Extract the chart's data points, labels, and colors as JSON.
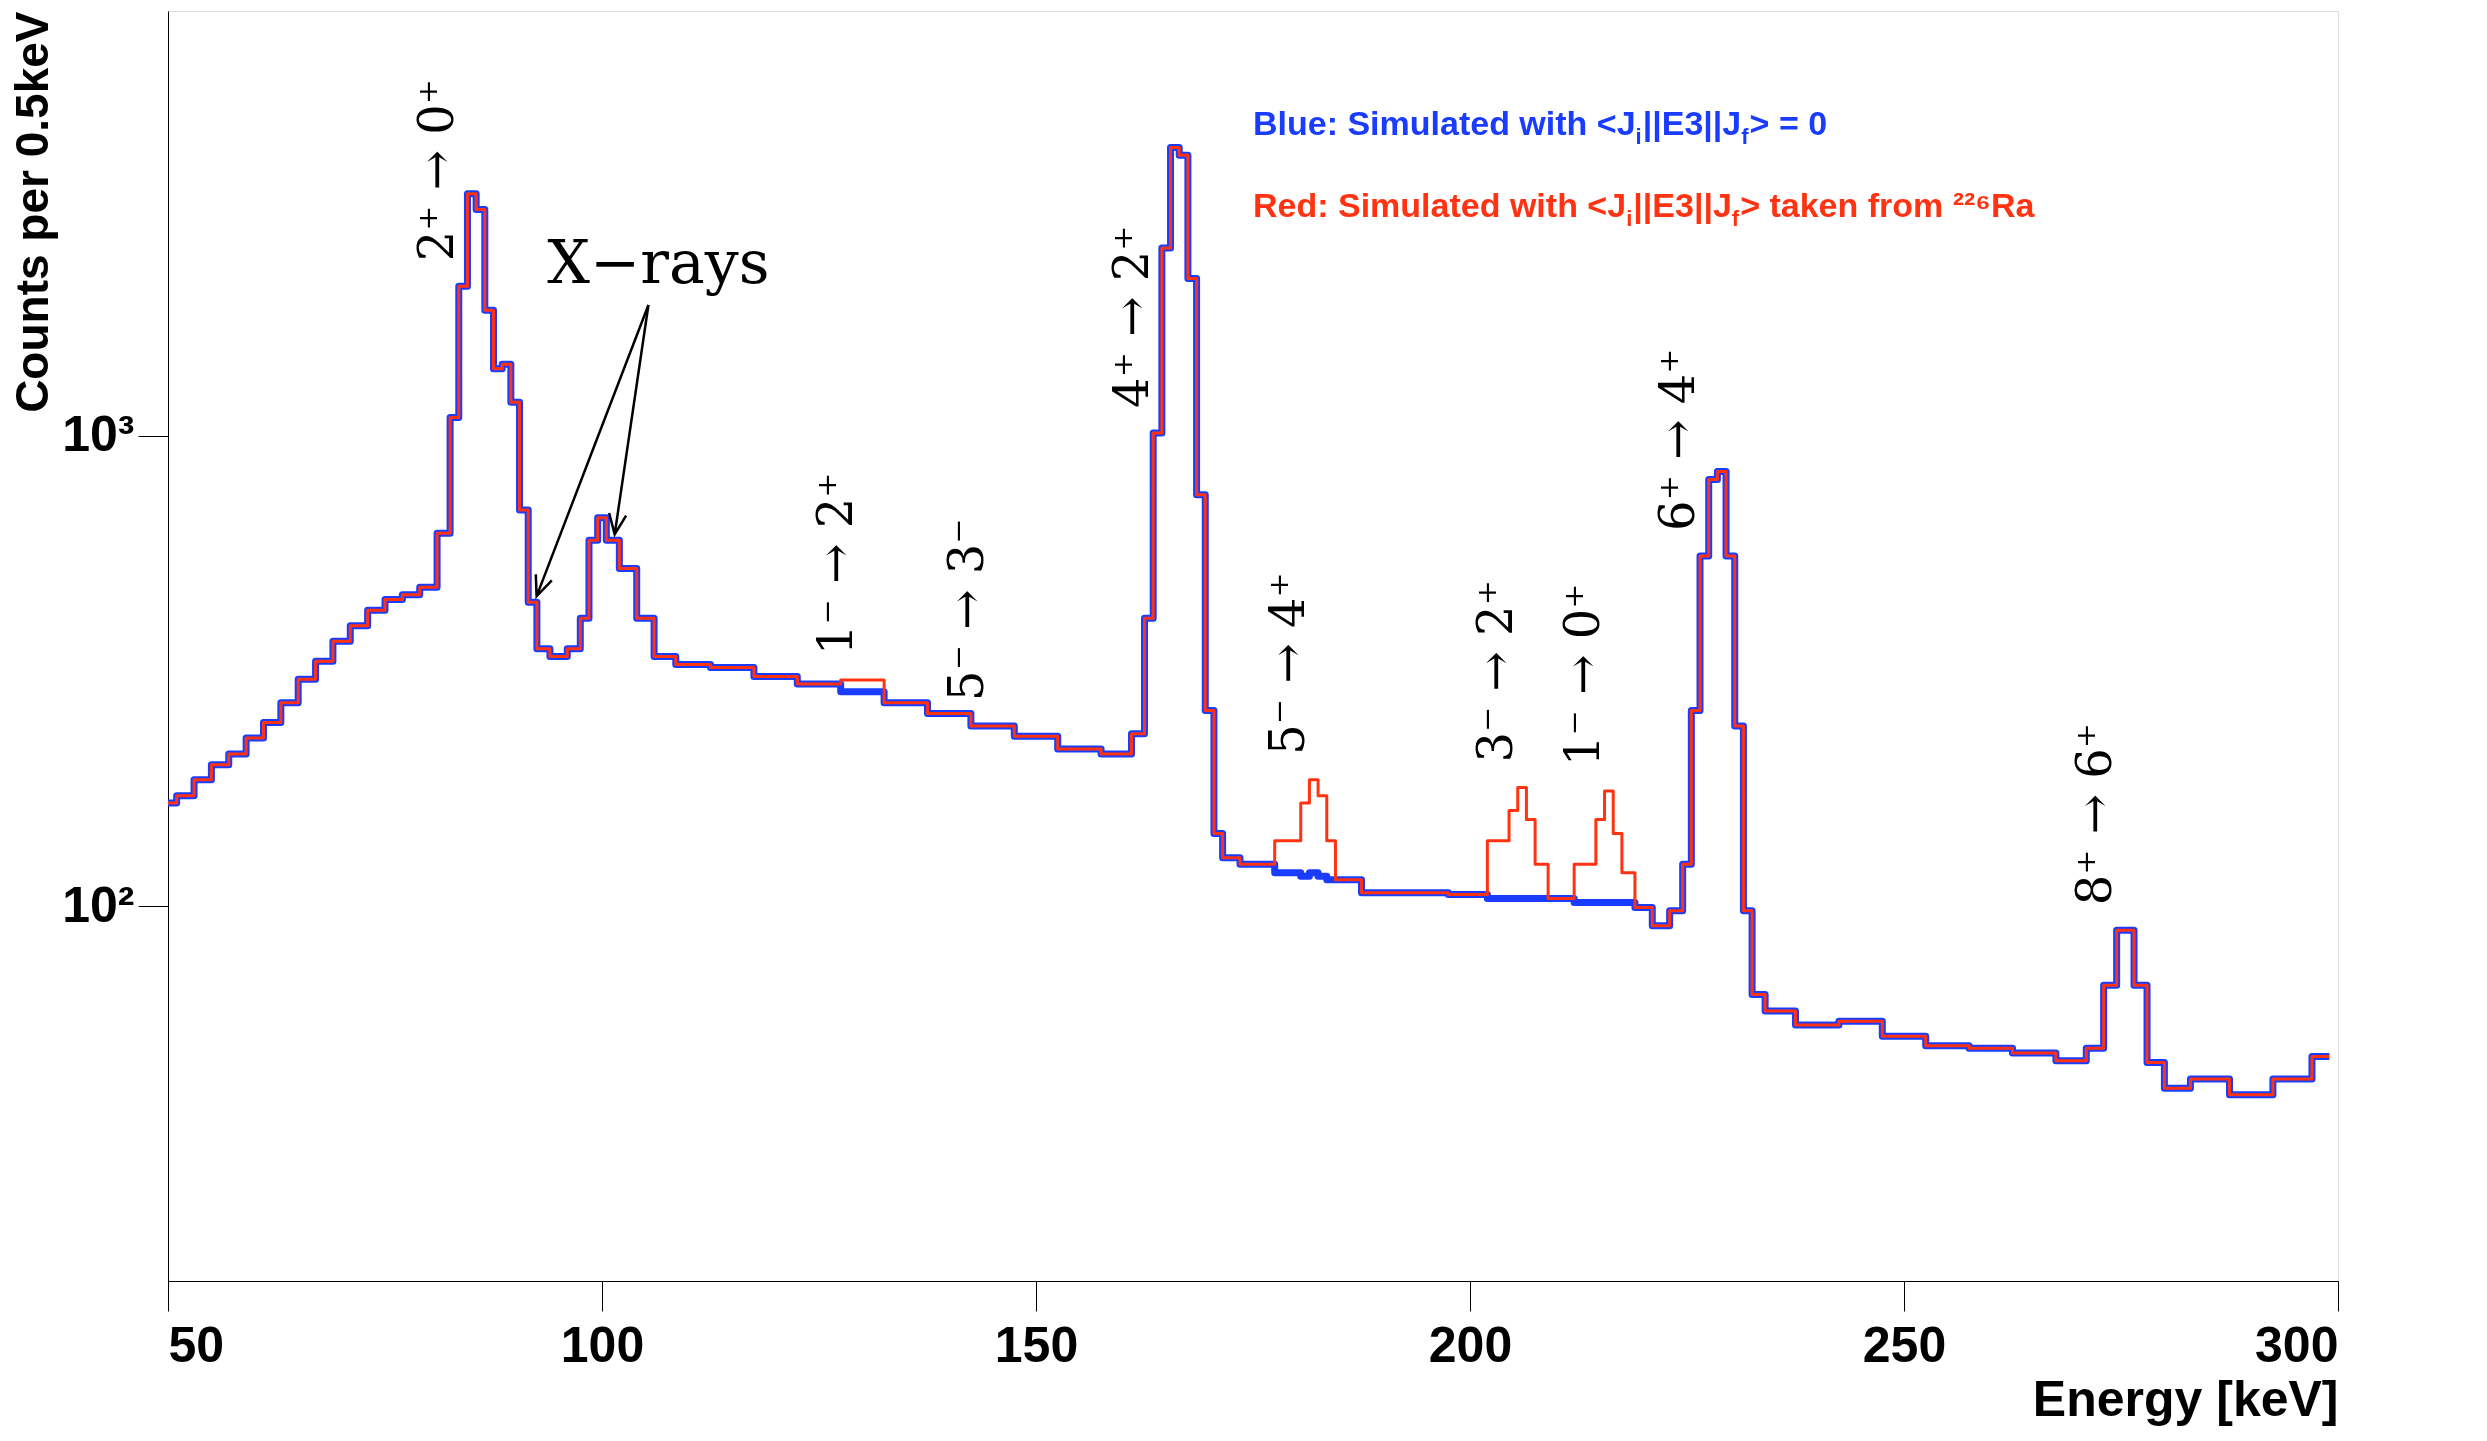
{
  "chart_data": {
    "type": "step",
    "xlabel": "Energy [keV]",
    "ylabel": "Counts per 0.5keV",
    "log": "y",
    "grid": false,
    "legend": "top right",
    "line_style": "solid",
    "marker": "none",
    "xlim": [
      50,
      300
    ],
    "xticks": [
      50,
      100,
      150,
      200,
      250,
      300
    ],
    "ylim": [
      16,
      8000
    ],
    "yticks": [
      {
        "value": 100,
        "label": "10²"
      },
      {
        "value": 1000,
        "label": "10³"
      }
    ],
    "x": [
      50,
      52,
      54,
      56,
      58,
      60,
      62,
      64,
      66,
      68,
      70,
      72,
      74,
      76,
      78,
      80,
      82,
      83,
      84,
      85,
      86,
      87,
      88,
      89,
      90,
      91,
      92,
      93,
      95,
      97,
      98,
      99,
      100,
      101,
      103,
      105,
      107,
      110,
      115,
      120,
      125,
      130,
      135,
      140,
      145,
      150,
      155,
      160,
      162,
      163,
      164,
      165,
      166,
      167,
      168,
      169,
      170,
      171,
      172,
      175,
      180,
      181,
      182,
      183,
      184,
      185,
      190,
      195,
      200,
      204,
      205,
      206,
      207,
      208,
      210,
      214,
      215,
      216,
      217,
      218,
      220,
      222,
      224,
      225,
      226,
      227,
      228,
      229,
      230,
      231,
      232,
      233,
      235,
      240,
      245,
      250,
      255,
      260,
      265,
      270,
      272,
      274,
      275,
      276,
      277,
      279,
      281,
      285,
      290,
      295,
      299
    ],
    "series": [
      {
        "name": "Blue: Simulated with <J$_{i}$||E3||J$_{f}$> = 0",
        "color": "#1a3cff",
        "values": [
          166,
          172,
          186,
          200,
          211,
          228,
          246,
          271,
          304,
          332,
          366,
          395,
          426,
          449,
          460,
          477,
          621,
          1095,
          2080,
          3270,
          3030,
          1850,
          1390,
          1420,
          1180,
          696,
          443,
          353,
          340,
          353,
          410,
          600,
          670,
          600,
          523,
          410,
          340,
          327,
          322,
          308,
          297,
          286,
          271,
          257,
          242,
          230,
          216,
          211,
          233,
          410,
          1015,
          2510,
          4100,
          3950,
          2160,
          750,
          261,
          143,
          127,
          123,
          118,
          116,
          118,
          116,
          114,
          114,
          107,
          107,
          106,
          104,
          104,
          104,
          104,
          104,
          104,
          102,
          102,
          102,
          102,
          102,
          99.5,
          91,
          98,
          123,
          261,
          556,
          808,
          840,
          556,
          242,
          98,
          65,
          60,
          56,
          57,
          53,
          50.6,
          50,
          48.8,
          47,
          50,
          68,
          89,
          89,
          68,
          46.6,
          41.1,
          43,
          39.8,
          43,
          48
        ]
      },
      {
        "name": "Red: Simulated with <J$_{i}$||E3||J$_{f}$> taken from ²²⁶Ra",
        "color": "#ff3311",
        "values": [
          166,
          172,
          186,
          200,
          211,
          228,
          246,
          271,
          304,
          332,
          366,
          395,
          426,
          449,
          460,
          477,
          621,
          1095,
          2080,
          3270,
          3030,
          1850,
          1390,
          1420,
          1180,
          696,
          443,
          353,
          340,
          353,
          410,
          600,
          670,
          600,
          523,
          410,
          340,
          327,
          322,
          308,
          297,
          303,
          271,
          257,
          242,
          230,
          216,
          211,
          233,
          410,
          1015,
          2510,
          4100,
          3950,
          2160,
          750,
          261,
          143,
          127,
          123,
          138,
          166,
          186,
          172,
          138,
          114,
          107,
          107,
          106,
          138,
          160,
          179,
          153,
          123,
          104,
          123,
          153,
          176,
          143,
          118,
          99.5,
          91,
          98,
          123,
          261,
          556,
          808,
          840,
          556,
          242,
          98,
          65,
          60,
          56,
          57,
          53,
          50.6,
          50,
          48.8,
          47,
          50,
          68,
          89,
          89,
          68,
          46.6,
          41.1,
          43,
          39.8,
          43,
          48
        ]
      }
    ],
    "annotations": [
      {
        "text": "2⁺ → 0⁺",
        "x": 84,
        "y": 2080
      },
      {
        "text": "1⁻ → 2⁺",
        "x": 130,
        "y": 303
      },
      {
        "text": "5⁻ → 3⁻",
        "x": 145,
        "y": 242
      },
      {
        "text": "4⁺ → 2⁺",
        "x": 164,
        "y": 1015
      },
      {
        "text": "5⁻ → 4⁺",
        "x": 182,
        "y": 186
      },
      {
        "text": "3⁻ → 2⁺",
        "x": 206,
        "y": 179
      },
      {
        "text": "1⁻ → 0⁺",
        "x": 216,
        "y": 176
      },
      {
        "text": "6⁺ → 4⁺",
        "x": 227,
        "y": 556
      },
      {
        "text": "8⁺ → 6⁺",
        "x": 275,
        "y": 89
      },
      "X−rays"
    ]
  }
}
